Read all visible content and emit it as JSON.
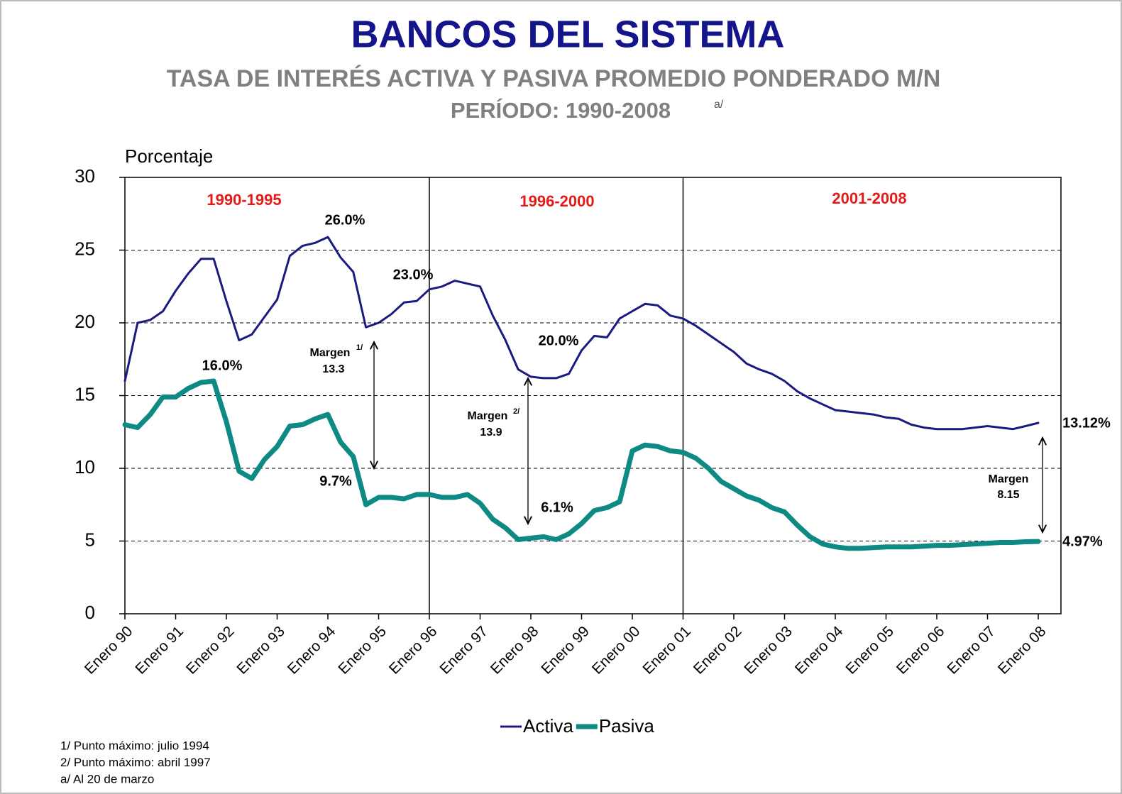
{
  "chart_data": {
    "type": "line",
    "title": "BANCOS DEL SISTEMA",
    "subtitle": "TASA DE INTERÉS ACTIVA Y PASIVA PROMEDIO PONDERADO M/N",
    "period": "PERÍODO:  1990-2008",
    "period_note": "a/",
    "y_label": "Porcentaje",
    "ylim": [
      0,
      30
    ],
    "yticks": [
      0,
      5,
      10,
      15,
      20,
      25,
      30
    ],
    "grid": true,
    "legend": "bottom",
    "categories": [
      "Enero 90",
      null,
      null,
      null,
      "Enero 91",
      null,
      null,
      null,
      "Enero 92",
      null,
      null,
      null,
      "Enero 93",
      null,
      null,
      null,
      "Enero 94",
      null,
      null,
      null,
      "Enero 95",
      null,
      null,
      null,
      "Enero 96",
      null,
      null,
      null,
      "Enero 97",
      null,
      null,
      null,
      "Enero 98",
      null,
      null,
      null,
      "Enero 99",
      null,
      null,
      null,
      "Enero 00",
      null,
      null,
      null,
      "Enero 01",
      null,
      null,
      null,
      "Enero 02",
      null,
      null,
      null,
      "Enero 03",
      null,
      null,
      null,
      "Enero 04",
      null,
      null,
      null,
      "Enero 05",
      null,
      null,
      null,
      "Enero 06",
      null,
      null,
      null,
      "Enero 07",
      null,
      null,
      null,
      "Enero 08"
    ],
    "series": [
      {
        "name": "Activa",
        "color": "#1a1a80",
        "values": [
          16.0,
          20.0,
          20.2,
          20.8,
          22.2,
          23.4,
          24.4,
          24.4,
          21.5,
          18.8,
          19.2,
          20.4,
          21.6,
          24.6,
          25.3,
          25.5,
          25.9,
          24.5,
          23.5,
          19.7,
          20.0,
          20.6,
          21.4,
          21.5,
          22.3,
          22.5,
          22.9,
          22.7,
          22.5,
          20.5,
          18.8,
          16.8,
          16.3,
          16.2,
          16.2,
          16.5,
          18.1,
          19.1,
          19.0,
          20.3,
          20.8,
          21.3,
          21.2,
          20.5,
          20.3,
          19.8,
          19.2,
          18.6,
          18.0,
          17.2,
          16.8,
          16.5,
          16.0,
          15.3,
          14.8,
          14.4,
          14.0,
          13.9,
          13.8,
          13.7,
          13.5,
          13.4,
          13.0,
          12.8,
          12.7,
          12.7,
          12.7,
          12.8,
          12.9,
          12.8,
          12.7,
          12.9,
          13.12
        ]
      },
      {
        "name": "Pasiva",
        "color": "#0e8a84",
        "values": [
          13.0,
          12.8,
          13.7,
          14.9,
          14.9,
          15.5,
          15.9,
          16.0,
          13.2,
          9.8,
          9.3,
          10.6,
          11.5,
          12.9,
          13.0,
          13.4,
          13.7,
          11.8,
          10.8,
          7.5,
          8.0,
          8.0,
          7.9,
          8.2,
          8.2,
          8.0,
          8.0,
          8.2,
          7.6,
          6.5,
          5.9,
          5.1,
          5.2,
          5.3,
          5.1,
          5.5,
          6.2,
          7.1,
          7.3,
          7.7,
          11.2,
          11.6,
          11.5,
          11.2,
          11.1,
          10.7,
          10.0,
          9.1,
          8.6,
          8.1,
          7.8,
          7.3,
          7.0,
          6.1,
          5.3,
          4.8,
          4.6,
          4.5,
          4.5,
          4.55,
          4.6,
          4.6,
          4.6,
          4.65,
          4.7,
          4.7,
          4.75,
          4.8,
          4.85,
          4.9,
          4.9,
          4.95,
          4.97
        ]
      }
    ],
    "periods": [
      "1990-1995",
      "1996-2000",
      "2001-2008"
    ],
    "annotations": [
      "26.0%",
      "23.0%",
      "16.0%",
      "9.7%",
      "20.0%",
      "6.1%",
      "13.12%",
      "4.97%"
    ],
    "margins": [
      {
        "label": "Margen",
        "note": "1/",
        "value": 13.3
      },
      {
        "label": "Margen",
        "note": "2/",
        "value": 13.9
      },
      {
        "label": "Margen",
        "value": 8.15
      }
    ],
    "footnotes": [
      "1/ Punto máximo:  julio 1994",
      "2/ Punto máximo:  abril 1997",
      "a/ Al 20 de marzo"
    ]
  }
}
